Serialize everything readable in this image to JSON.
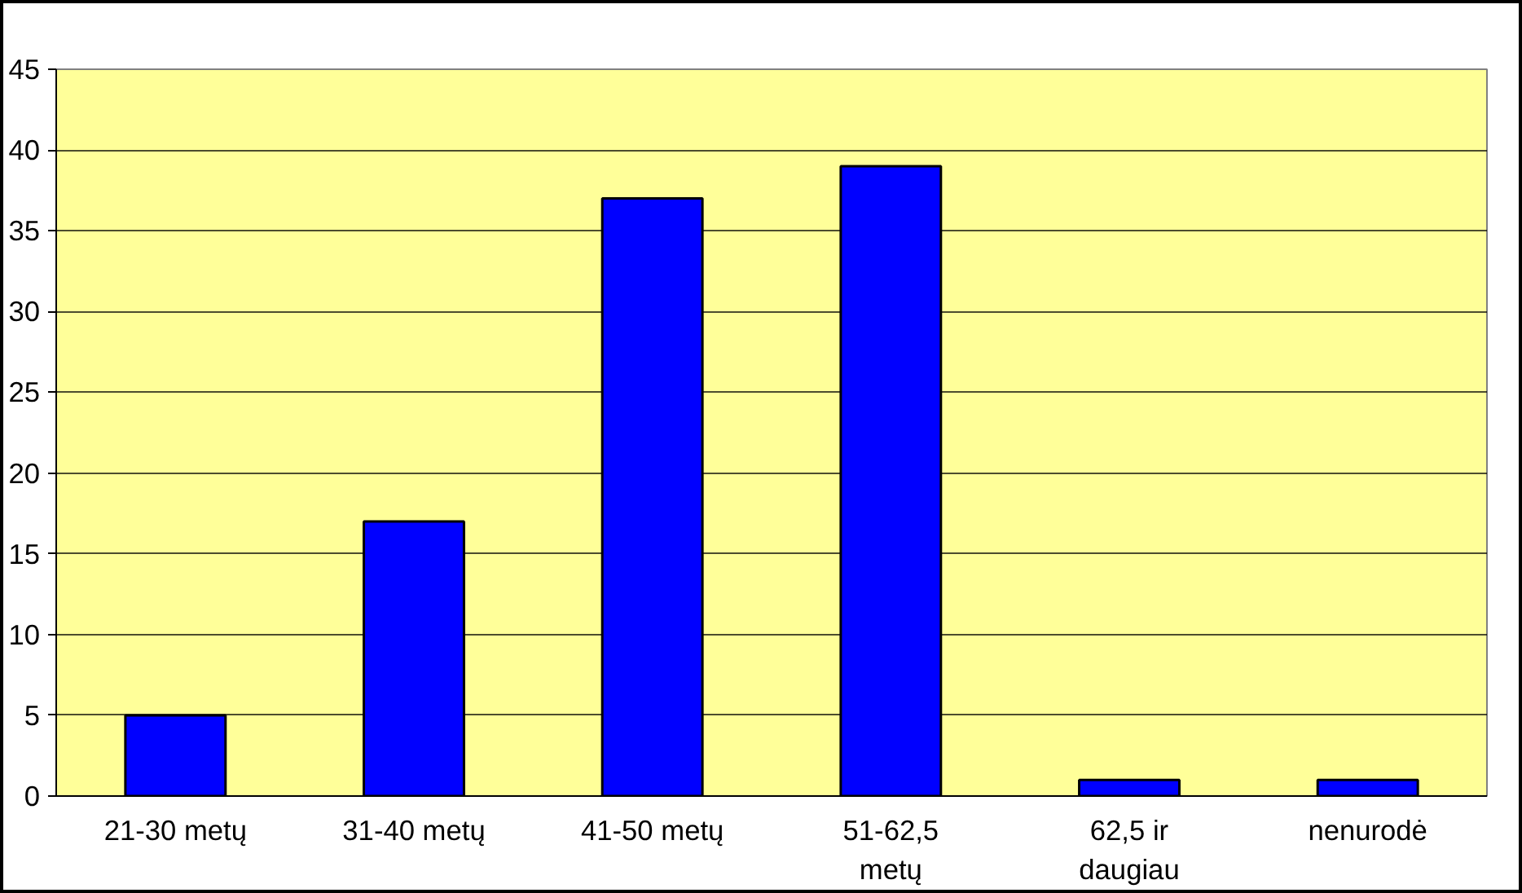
{
  "chart_data": {
    "type": "bar",
    "categories": [
      "21-30 metų",
      "31-40 metų",
      "41-50 metų",
      "51-62,5\nmetų",
      "62,5 ir\ndaugiau",
      "nenurodė"
    ],
    "values": [
      5,
      17,
      37,
      39,
      1,
      1
    ],
    "color": "#0000ff",
    "ylim": [
      0,
      45
    ],
    "yticks": [
      0,
      5,
      10,
      15,
      20,
      25,
      30,
      35,
      40,
      45
    ],
    "grid": "y"
  }
}
